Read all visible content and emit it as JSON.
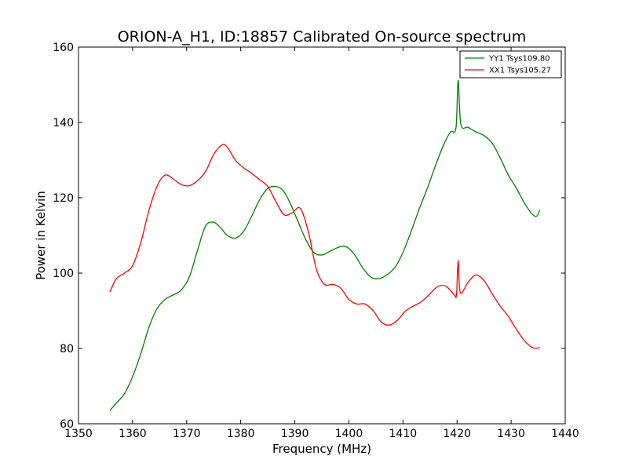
{
  "chart_data": {
    "type": "line",
    "title": "ORION-A_H1, ID:18857 Calibrated On-source spectrum",
    "xlabel": "Frequency (MHz)",
    "ylabel": "Power in Kelvin",
    "xlim": [
      1350,
      1440
    ],
    "ylim": [
      60,
      160
    ],
    "xticks": [
      1350,
      1360,
      1370,
      1380,
      1390,
      1400,
      1410,
      1420,
      1430,
      1440
    ],
    "yticks": [
      60,
      80,
      100,
      120,
      140,
      160
    ],
    "grid": false,
    "legend_position": "top-right",
    "series": [
      {
        "name": "YY1 Tsys109.80",
        "color": "#008000",
        "x": [
          1355.8,
          1357,
          1358.5,
          1360,
          1361.5,
          1363,
          1364.5,
          1366,
          1367.5,
          1369,
          1370.5,
          1372,
          1373.5,
          1375,
          1376.3,
          1377.5,
          1379,
          1380.5,
          1382,
          1383.5,
          1385,
          1386.5,
          1387.8,
          1389,
          1390.5,
          1392,
          1393.5,
          1395,
          1396.5,
          1398,
          1399.5,
          1401,
          1402.5,
          1404,
          1405.5,
          1407,
          1408.5,
          1410,
          1411.5,
          1413,
          1414.5,
          1416,
          1417.5,
          1418.8,
          1419.8,
          1420.2,
          1420.7,
          1422,
          1423.5,
          1425,
          1426.5,
          1428,
          1429.5,
          1431,
          1432.5,
          1434,
          1434.8,
          1435.3
        ],
        "values": [
          63.5,
          65.5,
          68,
          72.5,
          78.5,
          85.5,
          90.5,
          93,
          94.2,
          95.5,
          99,
          106,
          112.5,
          113.5,
          112,
          110,
          109.3,
          111,
          115,
          119.5,
          122.5,
          123,
          122,
          119,
          114,
          109,
          105.5,
          104.8,
          105.8,
          106.8,
          107,
          105,
          101.5,
          99,
          98.5,
          99.5,
          101.5,
          105.5,
          111,
          117,
          122.5,
          128.5,
          134,
          137.5,
          138.5,
          151.2,
          139.5,
          138.7,
          137.5,
          136.5,
          134.5,
          130.5,
          126,
          122.5,
          118.5,
          115.5,
          115.2,
          116.8
        ]
      },
      {
        "name": "XX1 Tsys105.27",
        "color": "#ff0000",
        "x": [
          1355.8,
          1357,
          1358.5,
          1360,
          1361.5,
          1363,
          1364.5,
          1366,
          1367.5,
          1369,
          1370.5,
          1372,
          1373.5,
          1375,
          1376.5,
          1377.5,
          1379,
          1380.5,
          1382,
          1383.5,
          1385,
          1386.5,
          1388,
          1389.5,
          1391,
          1392.5,
          1394,
          1395.5,
          1397,
          1398.5,
          1400,
          1401.5,
          1403,
          1404.5,
          1406,
          1407.5,
          1409,
          1410.5,
          1412,
          1413.5,
          1415,
          1416.5,
          1418,
          1419.5,
          1419.9,
          1420.2,
          1420.6,
          1422,
          1423.5,
          1425,
          1426.5,
          1428,
          1429.5,
          1431,
          1432.5,
          1434,
          1435.3
        ],
        "values": [
          95,
          98.5,
          100,
          102,
          108,
          116.5,
          123,
          126,
          125,
          123.5,
          123.2,
          124.5,
          127,
          131.5,
          134,
          133.5,
          130,
          128,
          126.5,
          124.8,
          123,
          119,
          115.5,
          116,
          117.2,
          111,
          101,
          97,
          97,
          96,
          93,
          91.8,
          91.8,
          90,
          87,
          86.2,
          87.5,
          90,
          91.3,
          92.5,
          94.5,
          96.5,
          96.5,
          94.2,
          94.3,
          103.3,
          94.8,
          97.5,
          99.5,
          98,
          94.5,
          91.2,
          88.5,
          85,
          82,
          80.2,
          80.2
        ]
      }
    ]
  }
}
